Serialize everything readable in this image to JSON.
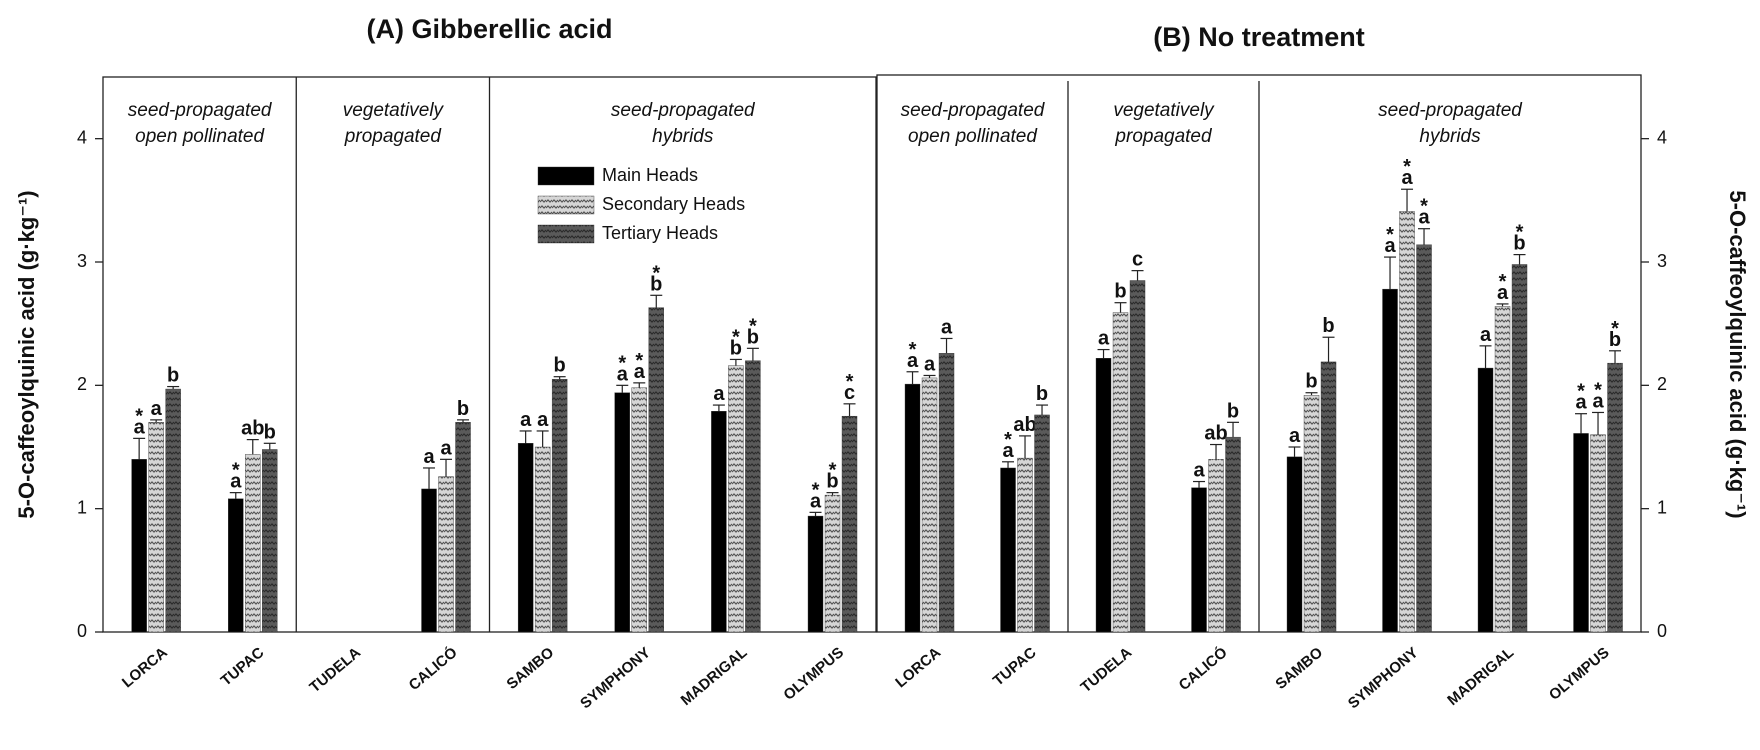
{
  "chart_data": [
    {
      "type": "bar",
      "title": "(A) Gibberellic acid",
      "ylabel": "5-O-caffeoylquinic acid (g·kg⁻¹)",
      "groups": [
        [
          "seed-propagated",
          "open pollinated"
        ],
        [
          "vegetatively",
          "propagated"
        ],
        [
          "seed-propagated",
          "hybrids"
        ]
      ],
      "categories": [
        "LORCA",
        "TUPAC",
        "TUDELA",
        "CALICÓ",
        "SAMBO",
        "SYMPHONY",
        "MADRIGAL",
        "OLYMPUS"
      ],
      "ylim": [
        0,
        4.5
      ],
      "yticks": [
        0,
        1,
        2,
        3,
        4
      ],
      "legend": "upper-center",
      "series": [
        {
          "name": "Main Heads",
          "color": "#000000",
          "hatch": false,
          "values": [
            1.4,
            1.08,
            null,
            1.16,
            1.53,
            1.94,
            1.79,
            0.94
          ],
          "errors": [
            0.17,
            0.05,
            null,
            0.17,
            0.1,
            0.06,
            0.05,
            0.03
          ],
          "labels": [
            "a",
            "a",
            null,
            "a",
            "a",
            "a",
            "a",
            "a"
          ],
          "marks": [
            "*",
            "*",
            null,
            null,
            null,
            "*",
            null,
            "*"
          ]
        },
        {
          "name": "Secondary Heads",
          "color": "#d6d6d6",
          "hatch": true,
          "values": [
            1.7,
            1.44,
            null,
            1.26,
            1.5,
            1.98,
            2.16,
            1.11
          ],
          "errors": [
            0.02,
            0.12,
            null,
            0.14,
            0.13,
            0.04,
            0.05,
            0.02
          ],
          "labels": [
            "a",
            "ab",
            null,
            "a",
            "a",
            "a",
            "b",
            "b"
          ],
          "marks": [
            null,
            null,
            null,
            null,
            null,
            "*",
            "*",
            "*"
          ]
        },
        {
          "name": "Tertiary Heads",
          "color": "#5a5a5a",
          "hatch": true,
          "values": [
            1.97,
            1.48,
            null,
            1.7,
            2.05,
            2.63,
            2.2,
            1.75
          ],
          "errors": [
            0.02,
            0.05,
            null,
            0.02,
            0.02,
            0.1,
            0.1,
            0.1
          ],
          "labels": [
            "b",
            "b",
            null,
            "b",
            "b",
            "b",
            "b",
            "c"
          ],
          "marks": [
            null,
            null,
            null,
            null,
            null,
            "*",
            "*",
            "*"
          ]
        }
      ]
    },
    {
      "type": "bar",
      "title": "(B) No treatment",
      "ylabel": "5-O-caffeoylquinic acid (g·kg⁻¹)",
      "groups": [
        [
          "seed-propagated",
          "open pollinated"
        ],
        [
          "vegetatively",
          "propagated"
        ],
        [
          "seed-propagated",
          "hybrids"
        ]
      ],
      "categories": [
        "LORCA",
        "TUPAC",
        "TUDELA",
        "CALICÓ",
        "SAMBO",
        "SYMPHONY",
        "MADRIGAL",
        "OLYMPUS"
      ],
      "ylim": [
        0,
        4.5
      ],
      "yticks": [
        0,
        1,
        2,
        3,
        4
      ],
      "series": [
        {
          "name": "Main Heads",
          "color": "#000000",
          "hatch": false,
          "values": [
            2.01,
            1.33,
            2.22,
            1.17,
            1.42,
            2.78,
            2.14,
            1.61
          ],
          "errors": [
            0.1,
            0.05,
            0.07,
            0.05,
            0.08,
            0.26,
            0.18,
            0.16
          ],
          "labels": [
            "a",
            "a",
            "a",
            "a",
            "a",
            "a",
            "a",
            "a"
          ],
          "marks": [
            "*",
            "*",
            null,
            null,
            null,
            "*",
            null,
            "*"
          ]
        },
        {
          "name": "Secondary Heads",
          "color": "#d6d6d6",
          "hatch": true,
          "values": [
            2.06,
            1.41,
            2.59,
            1.4,
            1.92,
            3.41,
            2.64,
            1.6
          ],
          "errors": [
            0.02,
            0.18,
            0.08,
            0.12,
            0.02,
            0.18,
            0.02,
            0.18
          ],
          "labels": [
            "a",
            "ab",
            "b",
            "ab",
            "b",
            "a",
            "a",
            "a"
          ],
          "marks": [
            null,
            null,
            null,
            null,
            null,
            "*",
            "*",
            "*"
          ]
        },
        {
          "name": "Tertiary Heads",
          "color": "#5a5a5a",
          "hatch": true,
          "values": [
            2.26,
            1.76,
            2.85,
            1.58,
            2.19,
            3.14,
            2.98,
            2.18
          ],
          "errors": [
            0.12,
            0.08,
            0.08,
            0.12,
            0.2,
            0.13,
            0.08,
            0.1
          ],
          "labels": [
            "a",
            "b",
            "c",
            "b",
            "b",
            "a",
            "b",
            "b"
          ],
          "marks": [
            null,
            null,
            null,
            null,
            null,
            "*",
            "*",
            "*"
          ]
        }
      ]
    }
  ]
}
